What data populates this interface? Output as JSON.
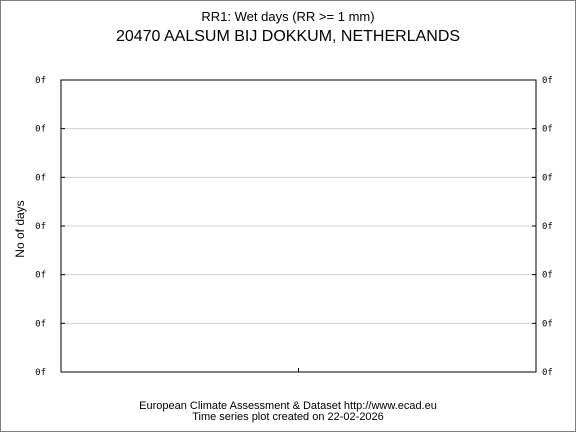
{
  "chart_data": {
    "type": "line",
    "title": "RR1: Wet days (RR >= 1 mm)",
    "subtitle": "20470 AALSUM BIJ DOKKUM, NETHERLANDS",
    "xlabel": "",
    "ylabel": "No of days",
    "y_tick_labels": [
      "0f",
      "0f",
      "0f",
      "0f",
      "0f",
      "0f",
      "0f"
    ],
    "grid": true,
    "series": []
  },
  "footer": {
    "line1": "European Climate Assessment & Dataset  http://www.ecad.eu",
    "line2": "Time series plot created on 22-02-2026"
  },
  "colors": {
    "background": "#ffffff",
    "grid": "#d3d3d3",
    "axis": "#000000",
    "frame": "#7f7f7f"
  }
}
